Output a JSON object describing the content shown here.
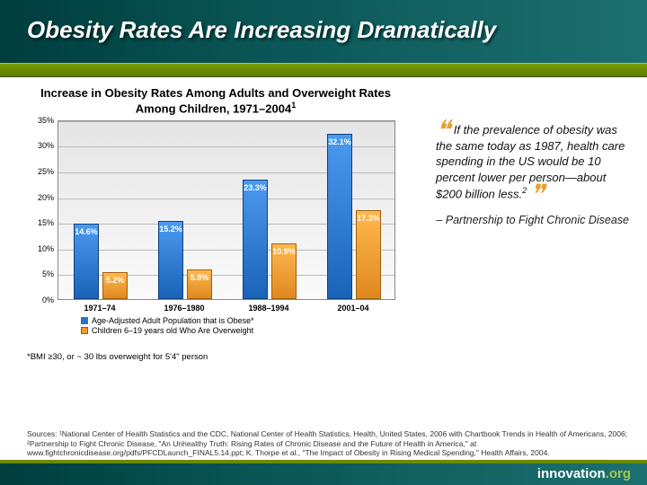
{
  "title": "Obesity Rates Are Increasing Dramatically",
  "chart": {
    "type": "bar",
    "title_line1": "Increase in Obesity Rates Among Adults and Overweight Rates",
    "title_line2": "Among Children, 1971–2004",
    "title_sup": "1",
    "ylim": [
      0,
      35
    ],
    "ytick_step": 5,
    "ylabels": [
      "0%",
      "5%",
      "10%",
      "15%",
      "20%",
      "25%",
      "30%",
      "35%"
    ],
    "categories": [
      "1971–74",
      "1976–1980",
      "1988–1994",
      "2001–04"
    ],
    "series": [
      {
        "name": "Age-Adjusted Adult Population that is Obese*",
        "color_top": "#4b9af0",
        "color_bottom": "#1a63b8",
        "border": "#0d4080",
        "values": [
          14.6,
          15.2,
          23.3,
          32.1
        ],
        "labels": [
          "14.6%",
          "15.2%",
          "23.3%",
          "32.1%"
        ]
      },
      {
        "name": "Children 6–19 years old Who Are Overweight",
        "color_top": "#ffb84d",
        "color_bottom": "#e08820",
        "border": "#a06010",
        "values": [
          5.2,
          5.8,
          10.9,
          17.3
        ],
        "labels": [
          "5.2%",
          "5.8%",
          "10.9%",
          "17.3%"
        ]
      }
    ],
    "background_top": "#e5e5e5",
    "background_bottom": "#fafafa",
    "grid_color": "#bbbbbb"
  },
  "footnote_bmi": "*BMI ≥30, or ~ 30 lbs overweight for 5'4\" person",
  "quote": {
    "text": "If the prevalence of obesity was the same today as 1987, health care spending in the US would be 10 percent lower per person—about $200 billion less.",
    "sup": "2",
    "attribution": "– Partnership to Fight Chronic Disease"
  },
  "sources": "Sources: ¹National Center of Health Statistics and the CDC, National Center of Health Statistics, Health, United States, 2006 with Chartbook Trends in Health of Americans, 2006; ²Partnership to Fight Chronic Disease, \"An Unhealthy Truth: Rising Rates of Chronic Disease and the Future of Health in America,\" at www.fightchronicdisease.org/pdfs/PFCDLaunch_FINAL5.14.ppt; K. Thorpe et al., \"The Impact of Obesity in Rising Medical Spending,\" Health Affairs, 2004.",
  "footer": {
    "brand": "innovation",
    "suffix": ".org"
  }
}
